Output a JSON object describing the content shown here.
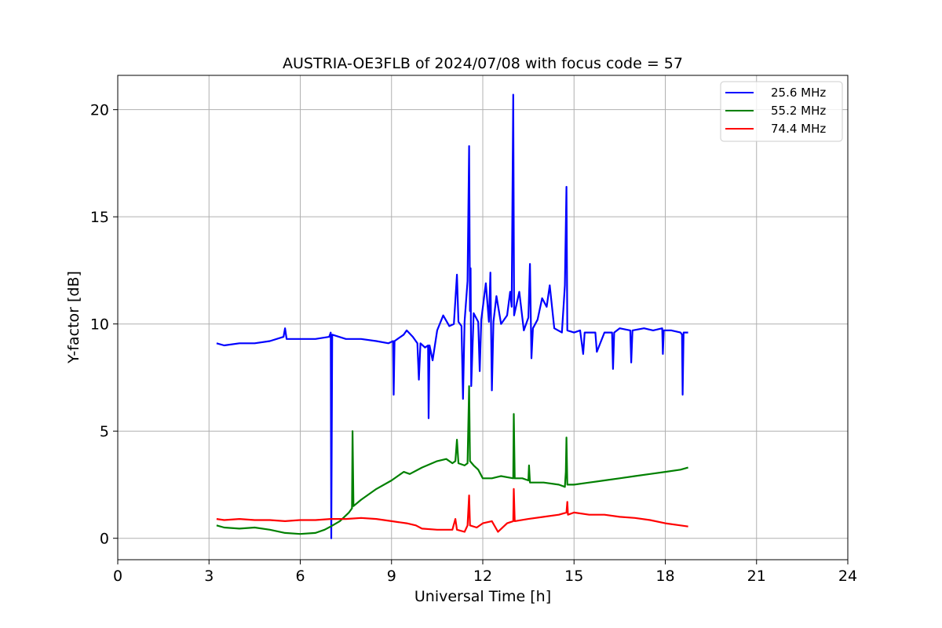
{
  "chart_data": {
    "type": "line",
    "title": "AUSTRIA-OE3FLB of 2024/07/08 with focus code = 57",
    "xlabel": "Universal Time [h]",
    "ylabel": "Y-factor [dB]",
    "xlim": [
      0,
      24
    ],
    "ylim": [
      -1,
      21.6
    ],
    "xticks": [
      0,
      3,
      6,
      9,
      12,
      15,
      18,
      21,
      24
    ],
    "yticks": [
      0,
      5,
      10,
      15,
      20
    ],
    "grid": true,
    "legend_position": "top-right",
    "series": [
      {
        "name": "25.6 MHz",
        "color": "#0000ff",
        "points": [
          [
            3.25,
            9.1
          ],
          [
            3.5,
            9.0
          ],
          [
            4.0,
            9.1
          ],
          [
            4.5,
            9.1
          ],
          [
            5.0,
            9.2
          ],
          [
            5.45,
            9.4
          ],
          [
            5.5,
            9.8
          ],
          [
            5.55,
            9.3
          ],
          [
            6.0,
            9.3
          ],
          [
            6.5,
            9.3
          ],
          [
            6.95,
            9.4
          ],
          [
            7.0,
            9.6
          ],
          [
            7.02,
            0.0
          ],
          [
            7.05,
            9.5
          ],
          [
            7.5,
            9.3
          ],
          [
            8.0,
            9.3
          ],
          [
            8.5,
            9.2
          ],
          [
            8.9,
            9.1
          ],
          [
            9.05,
            9.2
          ],
          [
            9.07,
            6.7
          ],
          [
            9.1,
            9.2
          ],
          [
            9.4,
            9.5
          ],
          [
            9.5,
            9.7
          ],
          [
            9.7,
            9.4
          ],
          [
            9.85,
            9.1
          ],
          [
            9.9,
            7.4
          ],
          [
            9.95,
            9.1
          ],
          [
            10.1,
            8.9
          ],
          [
            10.2,
            9.0
          ],
          [
            10.22,
            5.6
          ],
          [
            10.25,
            9.0
          ],
          [
            10.35,
            8.3
          ],
          [
            10.5,
            9.7
          ],
          [
            10.7,
            10.4
          ],
          [
            10.9,
            9.9
          ],
          [
            11.05,
            10.0
          ],
          [
            11.15,
            12.3
          ],
          [
            11.2,
            10.1
          ],
          [
            11.3,
            9.9
          ],
          [
            11.35,
            6.5
          ],
          [
            11.4,
            10.1
          ],
          [
            11.5,
            12.0
          ],
          [
            11.55,
            18.3
          ],
          [
            11.58,
            10.6
          ],
          [
            11.6,
            12.6
          ],
          [
            11.62,
            7.1
          ],
          [
            11.7,
            10.5
          ],
          [
            11.85,
            10.1
          ],
          [
            11.9,
            7.8
          ],
          [
            11.95,
            10.2
          ],
          [
            12.1,
            11.9
          ],
          [
            12.2,
            10.1
          ],
          [
            12.25,
            12.4
          ],
          [
            12.3,
            6.9
          ],
          [
            12.35,
            10.1
          ],
          [
            12.45,
            11.3
          ],
          [
            12.6,
            10.0
          ],
          [
            12.8,
            10.4
          ],
          [
            12.9,
            11.5
          ],
          [
            12.95,
            10.8
          ],
          [
            13.0,
            20.7
          ],
          [
            13.03,
            10.4
          ],
          [
            13.2,
            11.5
          ],
          [
            13.35,
            9.7
          ],
          [
            13.5,
            10.3
          ],
          [
            13.55,
            12.8
          ],
          [
            13.6,
            8.4
          ],
          [
            13.65,
            9.8
          ],
          [
            13.8,
            10.2
          ],
          [
            13.95,
            11.2
          ],
          [
            14.1,
            10.8
          ],
          [
            14.2,
            11.8
          ],
          [
            14.35,
            9.8
          ],
          [
            14.6,
            9.6
          ],
          [
            14.7,
            11.8
          ],
          [
            14.75,
            16.4
          ],
          [
            14.78,
            9.7
          ],
          [
            15.0,
            9.6
          ],
          [
            15.2,
            9.7
          ],
          [
            15.3,
            8.6
          ],
          [
            15.35,
            9.6
          ],
          [
            15.7,
            9.6
          ],
          [
            15.75,
            8.7
          ],
          [
            16.0,
            9.6
          ],
          [
            16.25,
            9.6
          ],
          [
            16.28,
            7.9
          ],
          [
            16.32,
            9.6
          ],
          [
            16.5,
            9.8
          ],
          [
            16.85,
            9.7
          ],
          [
            16.88,
            8.2
          ],
          [
            16.92,
            9.7
          ],
          [
            17.3,
            9.8
          ],
          [
            17.6,
            9.7
          ],
          [
            17.9,
            9.8
          ],
          [
            17.92,
            8.6
          ],
          [
            17.95,
            9.7
          ],
          [
            18.2,
            9.7
          ],
          [
            18.5,
            9.6
          ],
          [
            18.55,
            9.5
          ],
          [
            18.57,
            6.7
          ],
          [
            18.6,
            9.6
          ],
          [
            18.75,
            9.6
          ]
        ]
      },
      {
        "name": "55.2 MHz",
        "color": "#008000",
        "points": [
          [
            3.25,
            0.6
          ],
          [
            3.5,
            0.5
          ],
          [
            4.0,
            0.45
          ],
          [
            4.5,
            0.5
          ],
          [
            5.0,
            0.4
          ],
          [
            5.5,
            0.25
          ],
          [
            6.0,
            0.2
          ],
          [
            6.5,
            0.25
          ],
          [
            6.8,
            0.4
          ],
          [
            7.0,
            0.55
          ],
          [
            7.3,
            0.8
          ],
          [
            7.6,
            1.2
          ],
          [
            7.7,
            1.4
          ],
          [
            7.72,
            5.0
          ],
          [
            7.75,
            1.5
          ],
          [
            8.0,
            1.8
          ],
          [
            8.5,
            2.3
          ],
          [
            9.0,
            2.7
          ],
          [
            9.4,
            3.1
          ],
          [
            9.6,
            3.0
          ],
          [
            10.0,
            3.3
          ],
          [
            10.5,
            3.6
          ],
          [
            10.8,
            3.7
          ],
          [
            11.0,
            3.5
          ],
          [
            11.1,
            3.6
          ],
          [
            11.15,
            4.6
          ],
          [
            11.2,
            3.5
          ],
          [
            11.4,
            3.4
          ],
          [
            11.5,
            3.5
          ],
          [
            11.55,
            7.1
          ],
          [
            11.58,
            3.6
          ],
          [
            11.7,
            3.4
          ],
          [
            11.85,
            3.2
          ],
          [
            12.0,
            2.8
          ],
          [
            12.3,
            2.8
          ],
          [
            12.6,
            2.9
          ],
          [
            13.0,
            2.8
          ],
          [
            13.02,
            5.8
          ],
          [
            13.05,
            2.8
          ],
          [
            13.3,
            2.8
          ],
          [
            13.5,
            2.7
          ],
          [
            13.52,
            3.4
          ],
          [
            13.55,
            2.6
          ],
          [
            14.0,
            2.6
          ],
          [
            14.5,
            2.5
          ],
          [
            14.7,
            2.4
          ],
          [
            14.73,
            3.1
          ],
          [
            14.75,
            4.7
          ],
          [
            14.78,
            2.5
          ],
          [
            15.0,
            2.5
          ],
          [
            15.5,
            2.6
          ],
          [
            16.0,
            2.7
          ],
          [
            16.5,
            2.8
          ],
          [
            17.0,
            2.9
          ],
          [
            17.5,
            3.0
          ],
          [
            18.0,
            3.1
          ],
          [
            18.5,
            3.2
          ],
          [
            18.75,
            3.3
          ]
        ]
      },
      {
        "name": "74.4 MHz",
        "color": "#ff0000",
        "points": [
          [
            3.25,
            0.9
          ],
          [
            3.5,
            0.85
          ],
          [
            4.0,
            0.9
          ],
          [
            4.5,
            0.85
          ],
          [
            5.0,
            0.85
          ],
          [
            5.5,
            0.8
          ],
          [
            6.0,
            0.85
          ],
          [
            6.5,
            0.85
          ],
          [
            7.0,
            0.9
          ],
          [
            7.5,
            0.9
          ],
          [
            8.0,
            0.95
          ],
          [
            8.5,
            0.9
          ],
          [
            9.0,
            0.8
          ],
          [
            9.5,
            0.7
          ],
          [
            9.8,
            0.6
          ],
          [
            10.0,
            0.45
          ],
          [
            10.5,
            0.4
          ],
          [
            11.0,
            0.4
          ],
          [
            11.1,
            0.9
          ],
          [
            11.15,
            0.4
          ],
          [
            11.4,
            0.3
          ],
          [
            11.5,
            0.6
          ],
          [
            11.55,
            2.0
          ],
          [
            11.58,
            0.6
          ],
          [
            11.8,
            0.5
          ],
          [
            12.0,
            0.7
          ],
          [
            12.3,
            0.8
          ],
          [
            12.5,
            0.3
          ],
          [
            12.8,
            0.7
          ],
          [
            13.0,
            0.8
          ],
          [
            13.02,
            2.3
          ],
          [
            13.05,
            0.8
          ],
          [
            13.5,
            0.9
          ],
          [
            14.0,
            1.0
          ],
          [
            14.5,
            1.1
          ],
          [
            14.75,
            1.2
          ],
          [
            14.78,
            1.7
          ],
          [
            14.8,
            1.1
          ],
          [
            15.0,
            1.2
          ],
          [
            15.5,
            1.1
          ],
          [
            16.0,
            1.1
          ],
          [
            16.5,
            1.0
          ],
          [
            17.0,
            0.95
          ],
          [
            17.5,
            0.85
          ],
          [
            18.0,
            0.7
          ],
          [
            18.5,
            0.6
          ],
          [
            18.75,
            0.55
          ]
        ]
      }
    ]
  }
}
